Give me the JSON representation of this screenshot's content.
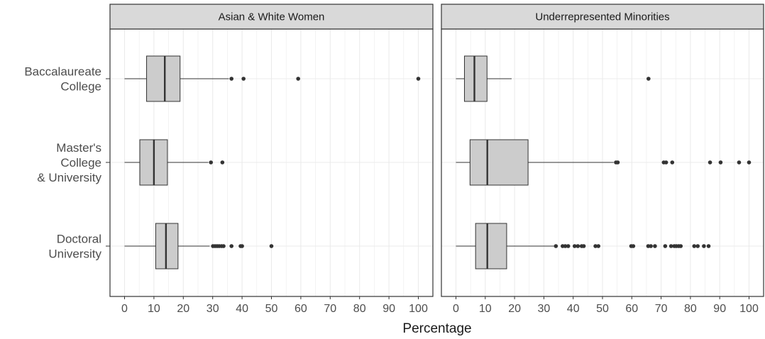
{
  "chart_data": {
    "type": "boxplot",
    "xlabel": "Percentage",
    "ylabel": "",
    "xlim": [
      0,
      100
    ],
    "x_ticks": [
      0,
      10,
      20,
      30,
      40,
      50,
      60,
      70,
      80,
      90,
      100
    ],
    "categories": [
      {
        "id": "baccalaureate",
        "lines": [
          "Baccalaureate",
          "College"
        ]
      },
      {
        "id": "masters",
        "lines": [
          "Master's",
          "College",
          "& University"
        ]
      },
      {
        "id": "doctoral",
        "lines": [
          "Doctoral",
          "University"
        ]
      }
    ],
    "grid": true,
    "colors": {
      "box_fill": "#cccccc",
      "box_stroke": "#333333",
      "strip_fill": "#d9d9d9",
      "outlier": "#333333",
      "grid": "#ebebeb"
    },
    "panels": [
      {
        "title": "Asian & White Women",
        "boxes": [
          {
            "category": "baccalaureate",
            "min": 0,
            "q1": 7.5,
            "median": 13.7,
            "q3": 18.9,
            "max": 35.5,
            "outliers": [
              36.4,
              40.5,
              59.1,
              100
            ]
          },
          {
            "category": "masters",
            "min": 0,
            "q1": 5.2,
            "median": 10,
            "q3": 14.6,
            "max": 28.5,
            "outliers": [
              29.4,
              33.3
            ]
          },
          {
            "category": "doctoral",
            "min": 0,
            "q1": 10.6,
            "median": 14.1,
            "q3": 18.2,
            "max": 29,
            "outliers": [
              30.1,
              30.8,
              31.5,
              32.2,
              33,
              33.7,
              36.4,
              39.5,
              40,
              50
            ]
          }
        ]
      },
      {
        "title": "Underrepresented Minorities",
        "boxes": [
          {
            "category": "baccalaureate",
            "min": 0,
            "q1": 2.9,
            "median": 6.3,
            "q3": 10.6,
            "max": 19,
            "outliers": [
              65.7
            ]
          },
          {
            "category": "masters",
            "min": 0,
            "q1": 4.8,
            "median": 10.7,
            "q3": 24.6,
            "max": 53.8,
            "outliers": [
              54.6,
              55.2,
              70.9,
              71.7,
              73.8,
              86.7,
              90.3,
              96.6,
              100
            ]
          },
          {
            "category": "doctoral",
            "min": 0,
            "q1": 6.7,
            "median": 10.7,
            "q3": 17.3,
            "max": 33.5,
            "outliers": [
              34.1,
              36.4,
              37.3,
              38.3,
              40.5,
              41.6,
              42.9,
              43.6,
              47.6,
              48.6,
              59.8,
              60.5,
              65.6,
              66.5,
              67.9,
              71.4,
              73.4,
              74.5,
              75.2,
              76,
              76.7,
              81.3,
              82.5,
              84.6,
              86.2
            ]
          }
        ]
      }
    ]
  }
}
